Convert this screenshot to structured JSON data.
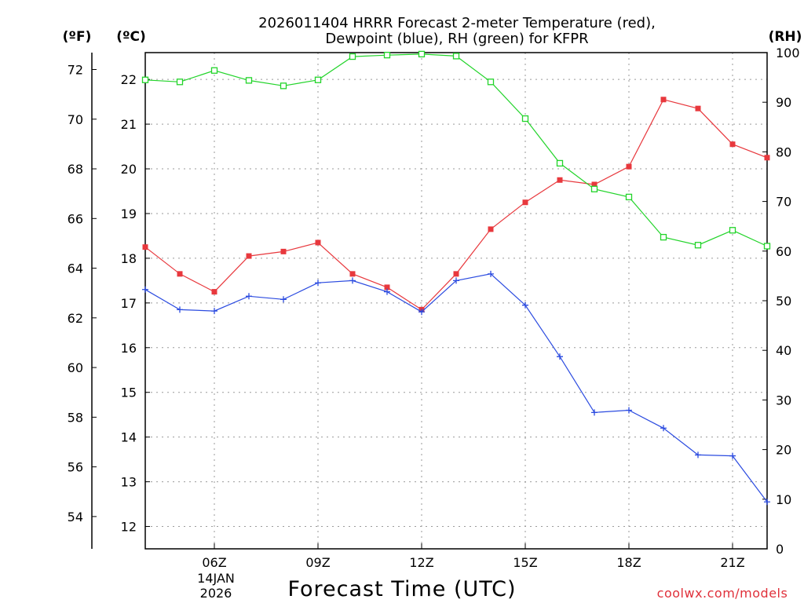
{
  "chart_data": {
    "type": "line",
    "title_lines": [
      "2026011404 HRRR Forecast 2-meter Temperature (red),",
      "Dewpoint (blue), RH (green) for KFPR"
    ],
    "xlabel": "Forecast Time (UTC)",
    "credit": "coolwx.com/models",
    "units": {
      "fahrenheit": "(ºF)",
      "celsius": "(ºC)",
      "rh": "(RH)"
    },
    "x_hours": [
      4,
      5,
      6,
      7,
      8,
      9,
      10,
      11,
      12,
      13,
      14,
      15,
      16,
      17,
      18,
      19,
      20,
      21,
      22
    ],
    "xlim": [
      4,
      22
    ],
    "x_ticks": [
      {
        "hour": 6,
        "label": "06Z"
      },
      {
        "hour": 9,
        "label": "09Z"
      },
      {
        "hour": 12,
        "label": "12Z"
      },
      {
        "hour": 15,
        "label": "15Z"
      },
      {
        "hour": 18,
        "label": "18Z"
      },
      {
        "hour": 21,
        "label": "21Z"
      }
    ],
    "date_label": [
      "14JAN",
      "2026"
    ],
    "celsius_axis": {
      "range": [
        11.5,
        22.6
      ],
      "ticks": [
        12,
        13,
        14,
        15,
        16,
        17,
        18,
        19,
        20,
        21,
        22
      ]
    },
    "fahrenheit_axis": {
      "range": [
        52.7,
        72.68
      ],
      "ticks": [
        54,
        56,
        58,
        60,
        62,
        64,
        66,
        68,
        70,
        72
      ]
    },
    "rh_axis": {
      "range": [
        0,
        100
      ],
      "ticks": [
        0,
        10,
        20,
        30,
        40,
        50,
        60,
        70,
        80,
        90,
        100
      ]
    },
    "series": [
      {
        "name": "Temperature",
        "axis": "celsius",
        "color": "#e8383d",
        "marker": "filled-square",
        "values": [
          18.25,
          17.65,
          17.25,
          18.05,
          18.15,
          18.35,
          17.65,
          17.35,
          16.85,
          17.65,
          18.65,
          19.25,
          19.75,
          19.65,
          20.05,
          21.55,
          21.35,
          20.55,
          20.25
        ]
      },
      {
        "name": "Dewpoint",
        "axis": "celsius",
        "color": "#2b4be0",
        "marker": "plus",
        "values": [
          17.3,
          16.85,
          16.82,
          17.15,
          17.08,
          17.45,
          17.5,
          17.25,
          16.8,
          17.5,
          17.65,
          16.95,
          15.8,
          14.55,
          14.6,
          14.2,
          13.6,
          13.58,
          12.55
        ]
      },
      {
        "name": "RH",
        "axis": "rh",
        "color": "#22d42a",
        "marker": "open-square",
        "values": [
          94.5,
          94.1,
          96.4,
          94.4,
          93.3,
          94.5,
          99.2,
          99.5,
          99.7,
          99.3,
          94.1,
          86.7,
          77.7,
          72.5,
          70.9,
          62.8,
          61.2,
          64.2,
          61.0
        ]
      }
    ]
  }
}
